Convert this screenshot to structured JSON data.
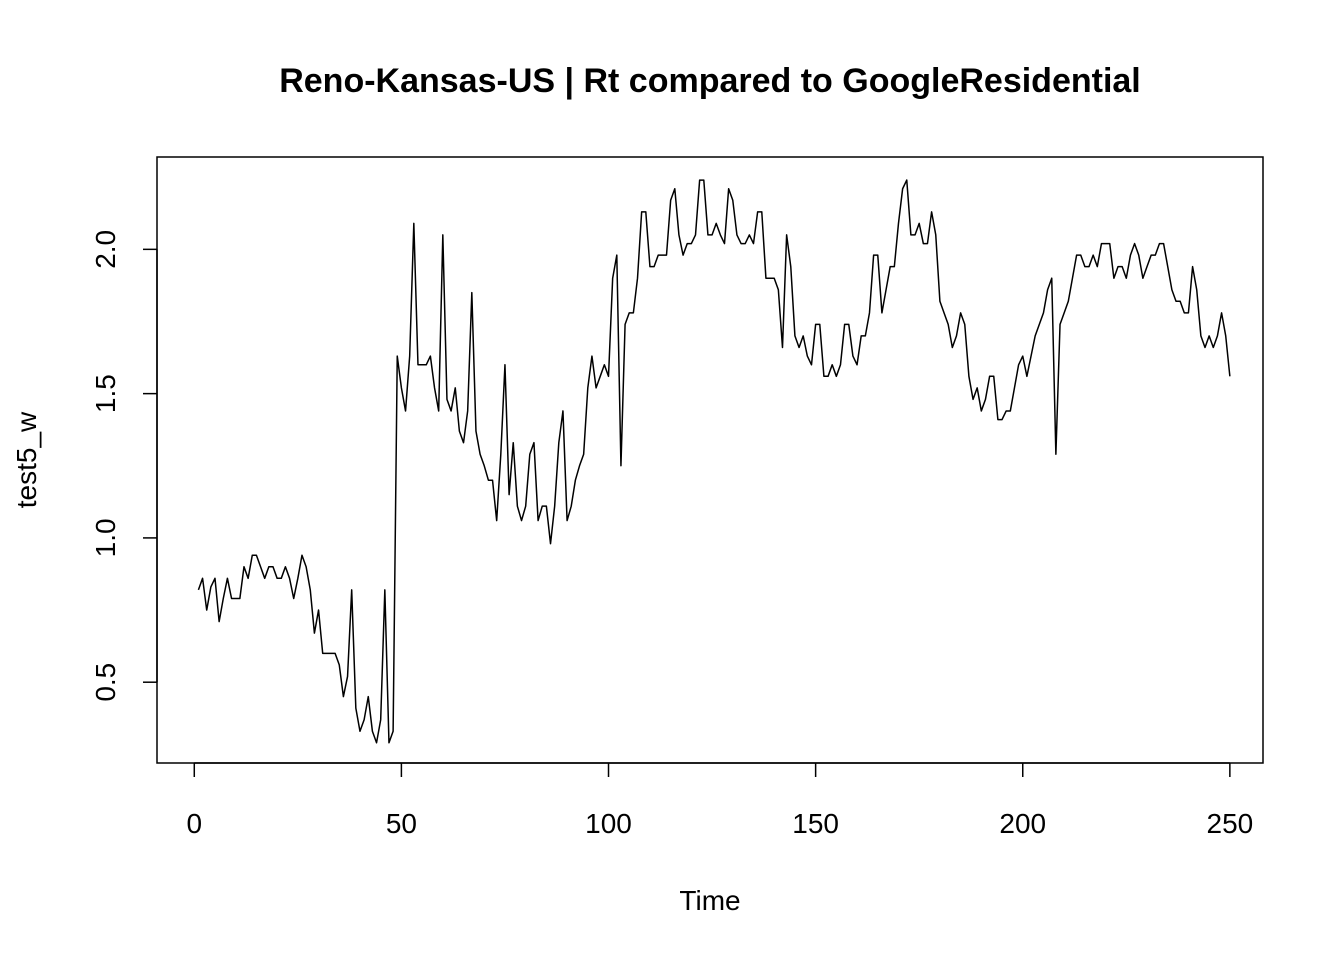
{
  "chart_data": {
    "type": "line",
    "title": "Reno-Kansas-US | Rt compared to GoogleResidential",
    "xlabel": "Time",
    "ylabel": "test5_w",
    "xlim": [
      -9,
      258
    ],
    "ylim": [
      0.22,
      2.32
    ],
    "x_ticks": [
      0,
      50,
      100,
      150,
      200,
      250
    ],
    "x_tick_labels": [
      "0",
      "50",
      "100",
      "150",
      "200",
      "250"
    ],
    "y_ticks": [
      0.5,
      1.0,
      1.5,
      2.0
    ],
    "y_tick_labels": [
      "0.5",
      "1.0",
      "1.5",
      "2.0"
    ],
    "grid": false,
    "legend": "none",
    "line_color": "#000000",
    "series": [
      {
        "x_start": 1,
        "values": [
          0.82,
          0.86,
          0.75,
          0.83,
          0.86,
          0.71,
          0.79,
          0.86,
          0.79,
          0.79,
          0.79,
          0.9,
          0.86,
          0.94,
          0.94,
          0.9,
          0.86,
          0.9,
          0.9,
          0.86,
          0.86,
          0.9,
          0.86,
          0.79,
          0.86,
          0.94,
          0.9,
          0.82,
          0.67,
          0.75,
          0.6,
          0.6,
          0.6,
          0.6,
          0.56,
          0.45,
          0.52,
          0.82,
          0.41,
          0.33,
          0.37,
          0.45,
          0.33,
          0.29,
          0.37,
          0.82,
          0.29,
          0.33,
          1.63,
          1.52,
          1.44,
          1.63,
          2.09,
          1.6,
          1.6,
          1.6,
          1.63,
          1.52,
          1.44,
          2.05,
          1.48,
          1.44,
          1.52,
          1.37,
          1.33,
          1.44,
          1.85,
          1.37,
          1.29,
          1.25,
          1.2,
          1.2,
          1.06,
          1.29,
          1.6,
          1.15,
          1.33,
          1.11,
          1.06,
          1.11,
          1.29,
          1.33,
          1.06,
          1.11,
          1.11,
          0.98,
          1.11,
          1.33,
          1.44,
          1.06,
          1.11,
          1.2,
          1.25,
          1.29,
          1.52,
          1.63,
          1.52,
          1.56,
          1.6,
          1.56,
          1.9,
          1.98,
          1.25,
          1.74,
          1.78,
          1.78,
          1.9,
          2.13,
          2.13,
          1.94,
          1.94,
          1.98,
          1.98,
          1.98,
          2.17,
          2.21,
          2.05,
          1.98,
          2.02,
          2.02,
          2.05,
          2.24,
          2.24,
          2.05,
          2.05,
          2.09,
          2.05,
          2.02,
          2.21,
          2.17,
          2.05,
          2.02,
          2.02,
          2.05,
          2.02,
          2.13,
          2.13,
          1.9,
          1.9,
          1.9,
          1.86,
          1.66,
          2.05,
          1.94,
          1.7,
          1.66,
          1.7,
          1.63,
          1.6,
          1.74,
          1.74,
          1.56,
          1.56,
          1.6,
          1.56,
          1.6,
          1.74,
          1.74,
          1.63,
          1.6,
          1.7,
          1.7,
          1.78,
          1.98,
          1.98,
          1.78,
          1.86,
          1.94,
          1.94,
          2.09,
          2.21,
          2.24,
          2.05,
          2.05,
          2.09,
          2.02,
          2.02,
          2.13,
          2.05,
          1.82,
          1.78,
          1.74,
          1.66,
          1.7,
          1.78,
          1.74,
          1.56,
          1.48,
          1.52,
          1.44,
          1.48,
          1.56,
          1.56,
          1.41,
          1.41,
          1.44,
          1.44,
          1.52,
          1.6,
          1.63,
          1.56,
          1.63,
          1.7,
          1.74,
          1.78,
          1.86,
          1.9,
          1.29,
          1.74,
          1.78,
          1.82,
          1.9,
          1.98,
          1.98,
          1.94,
          1.94,
          1.98,
          1.94,
          2.02,
          2.02,
          2.02,
          1.9,
          1.94,
          1.94,
          1.9,
          1.98,
          2.02,
          1.98,
          1.9,
          1.94,
          1.98,
          1.98,
          2.02,
          2.02,
          1.94,
          1.86,
          1.82,
          1.82,
          1.78,
          1.78,
          1.94,
          1.86,
          1.7,
          1.66,
          1.7,
          1.66,
          1.7,
          1.78,
          1.7,
          1.56
        ]
      }
    ]
  }
}
